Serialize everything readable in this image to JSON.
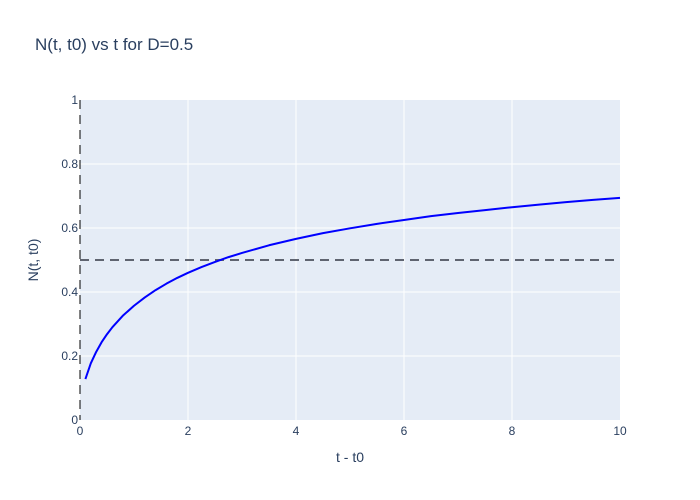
{
  "chart_data": {
    "type": "line",
    "title": "N(t, t0) vs t for D=0.5",
    "xlabel": "t - t0",
    "ylabel": "N(t, t0)",
    "xlim": [
      0,
      10
    ],
    "ylim": [
      0,
      1
    ],
    "x_ticks": [
      "0",
      "2",
      "4",
      "6",
      "8",
      "10"
    ],
    "y_ticks": [
      "0",
      "0.2",
      "0.4",
      "0.6",
      "0.8",
      "1"
    ],
    "grid": true,
    "series": [
      {
        "color": "#0000ff",
        "x": [
          0.1,
          0.2,
          0.3,
          0.4,
          0.5,
          0.6,
          0.8,
          1.0,
          1.2,
          1.4,
          1.6,
          1.8,
          2.0,
          2.25,
          2.5,
          2.75,
          3.0,
          3.5,
          4.0,
          4.5,
          5.0,
          5.5,
          6.0,
          6.5,
          7.0,
          7.5,
          8.0,
          8.5,
          9.0,
          9.5,
          10.0
        ],
        "y": [
          0.128,
          0.177,
          0.213,
          0.243,
          0.268,
          0.29,
          0.327,
          0.357,
          0.383,
          0.406,
          0.426,
          0.444,
          0.46,
          0.478,
          0.494,
          0.509,
          0.522,
          0.546,
          0.566,
          0.584,
          0.599,
          0.613,
          0.625,
          0.637,
          0.647,
          0.656,
          0.665,
          0.673,
          0.681,
          0.688,
          0.694
        ]
      }
    ],
    "reference_line": {
      "y": 0.5,
      "style": "dashed",
      "color": "#5f6470"
    },
    "colors": {
      "plot_bg": "#e5ecf6",
      "grid": "#ffffff",
      "text": "#2a3f5f"
    }
  }
}
